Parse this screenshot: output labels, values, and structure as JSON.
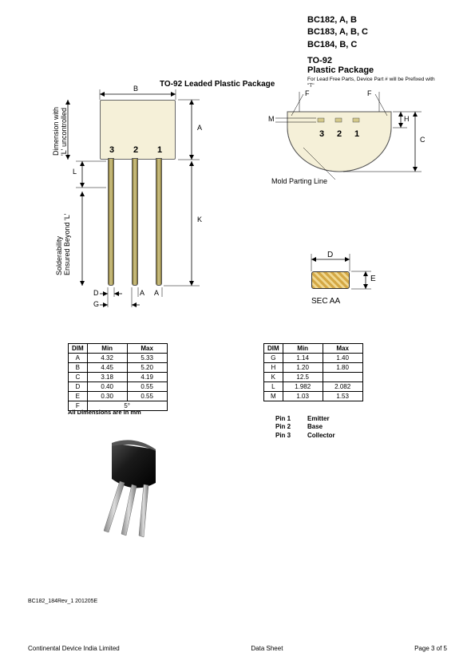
{
  "header": {
    "parts": [
      "BC182, A, B",
      "BC183, A, B, C",
      "BC184, B, C"
    ],
    "pkg_code": "TO-92",
    "pkg_name": "Plastic Package",
    "note": "For Lead Free Parts, Device Part # will be Prefixed with \"T\""
  },
  "section_title": "TO-92 Leaded Plastic Package",
  "left_diagram": {
    "pin_labels": [
      "3",
      "2",
      "1"
    ],
    "dims": {
      "B": "B",
      "A": "A",
      "L": "L",
      "K": "K",
      "D": "D",
      "G": "G",
      "Aleg": "A"
    },
    "vlabel1": "Dimension with",
    "vlabel1b": "'L' uncontrolled",
    "vlabel2": "Solderability",
    "vlabel2b": "Ensured Beyond 'L'"
  },
  "right_diagram": {
    "pin_labels": [
      "3",
      "2",
      "1"
    ],
    "dims": {
      "F": "F",
      "M": "M",
      "H": "H",
      "C": "C"
    },
    "mold_label": "Mold Parting Line"
  },
  "sec_diagram": {
    "dims": {
      "D": "D",
      "E": "E"
    },
    "label": "SEC AA"
  },
  "table_left": {
    "headers": [
      "DIM",
      "Min",
      "Max"
    ],
    "rows": [
      [
        "A",
        "4.32",
        "5.33"
      ],
      [
        "B",
        "4.45",
        "5.20"
      ],
      [
        "C",
        "3.18",
        "4.19"
      ],
      [
        "D",
        "0.40",
        "0.55"
      ],
      [
        "E",
        "0.30",
        "0.55"
      ],
      [
        "F",
        "5°",
        ""
      ]
    ],
    "note": "All Dimensions are in mm",
    "f_colspan": true
  },
  "table_right": {
    "headers": [
      "DIM",
      "Min",
      "Max"
    ],
    "rows": [
      [
        "G",
        "1.14",
        "1.40"
      ],
      [
        "H",
        "1.20",
        "1.80"
      ],
      [
        "K",
        "12.5",
        ""
      ],
      [
        "L",
        "1.982",
        "2.082"
      ],
      [
        "M",
        "1.03",
        "1.53"
      ]
    ]
  },
  "pin_assign": [
    {
      "pin": "Pin 1",
      "func": "Emitter"
    },
    {
      "pin": "Pin 2",
      "func": "Base"
    },
    {
      "pin": "Pin 3",
      "func": "Collector"
    }
  ],
  "colors": {
    "pkg_body": "#f5f0d8",
    "lead": "#b5a860",
    "hatch1": "#d4a845",
    "hatch2": "#f0d890",
    "black": "#000000"
  },
  "rev": "BC182_184Rev_1 201205E",
  "footer": {
    "left": "Continental Device India Limited",
    "center": "Data Sheet",
    "right": "Page 3 of 5"
  }
}
